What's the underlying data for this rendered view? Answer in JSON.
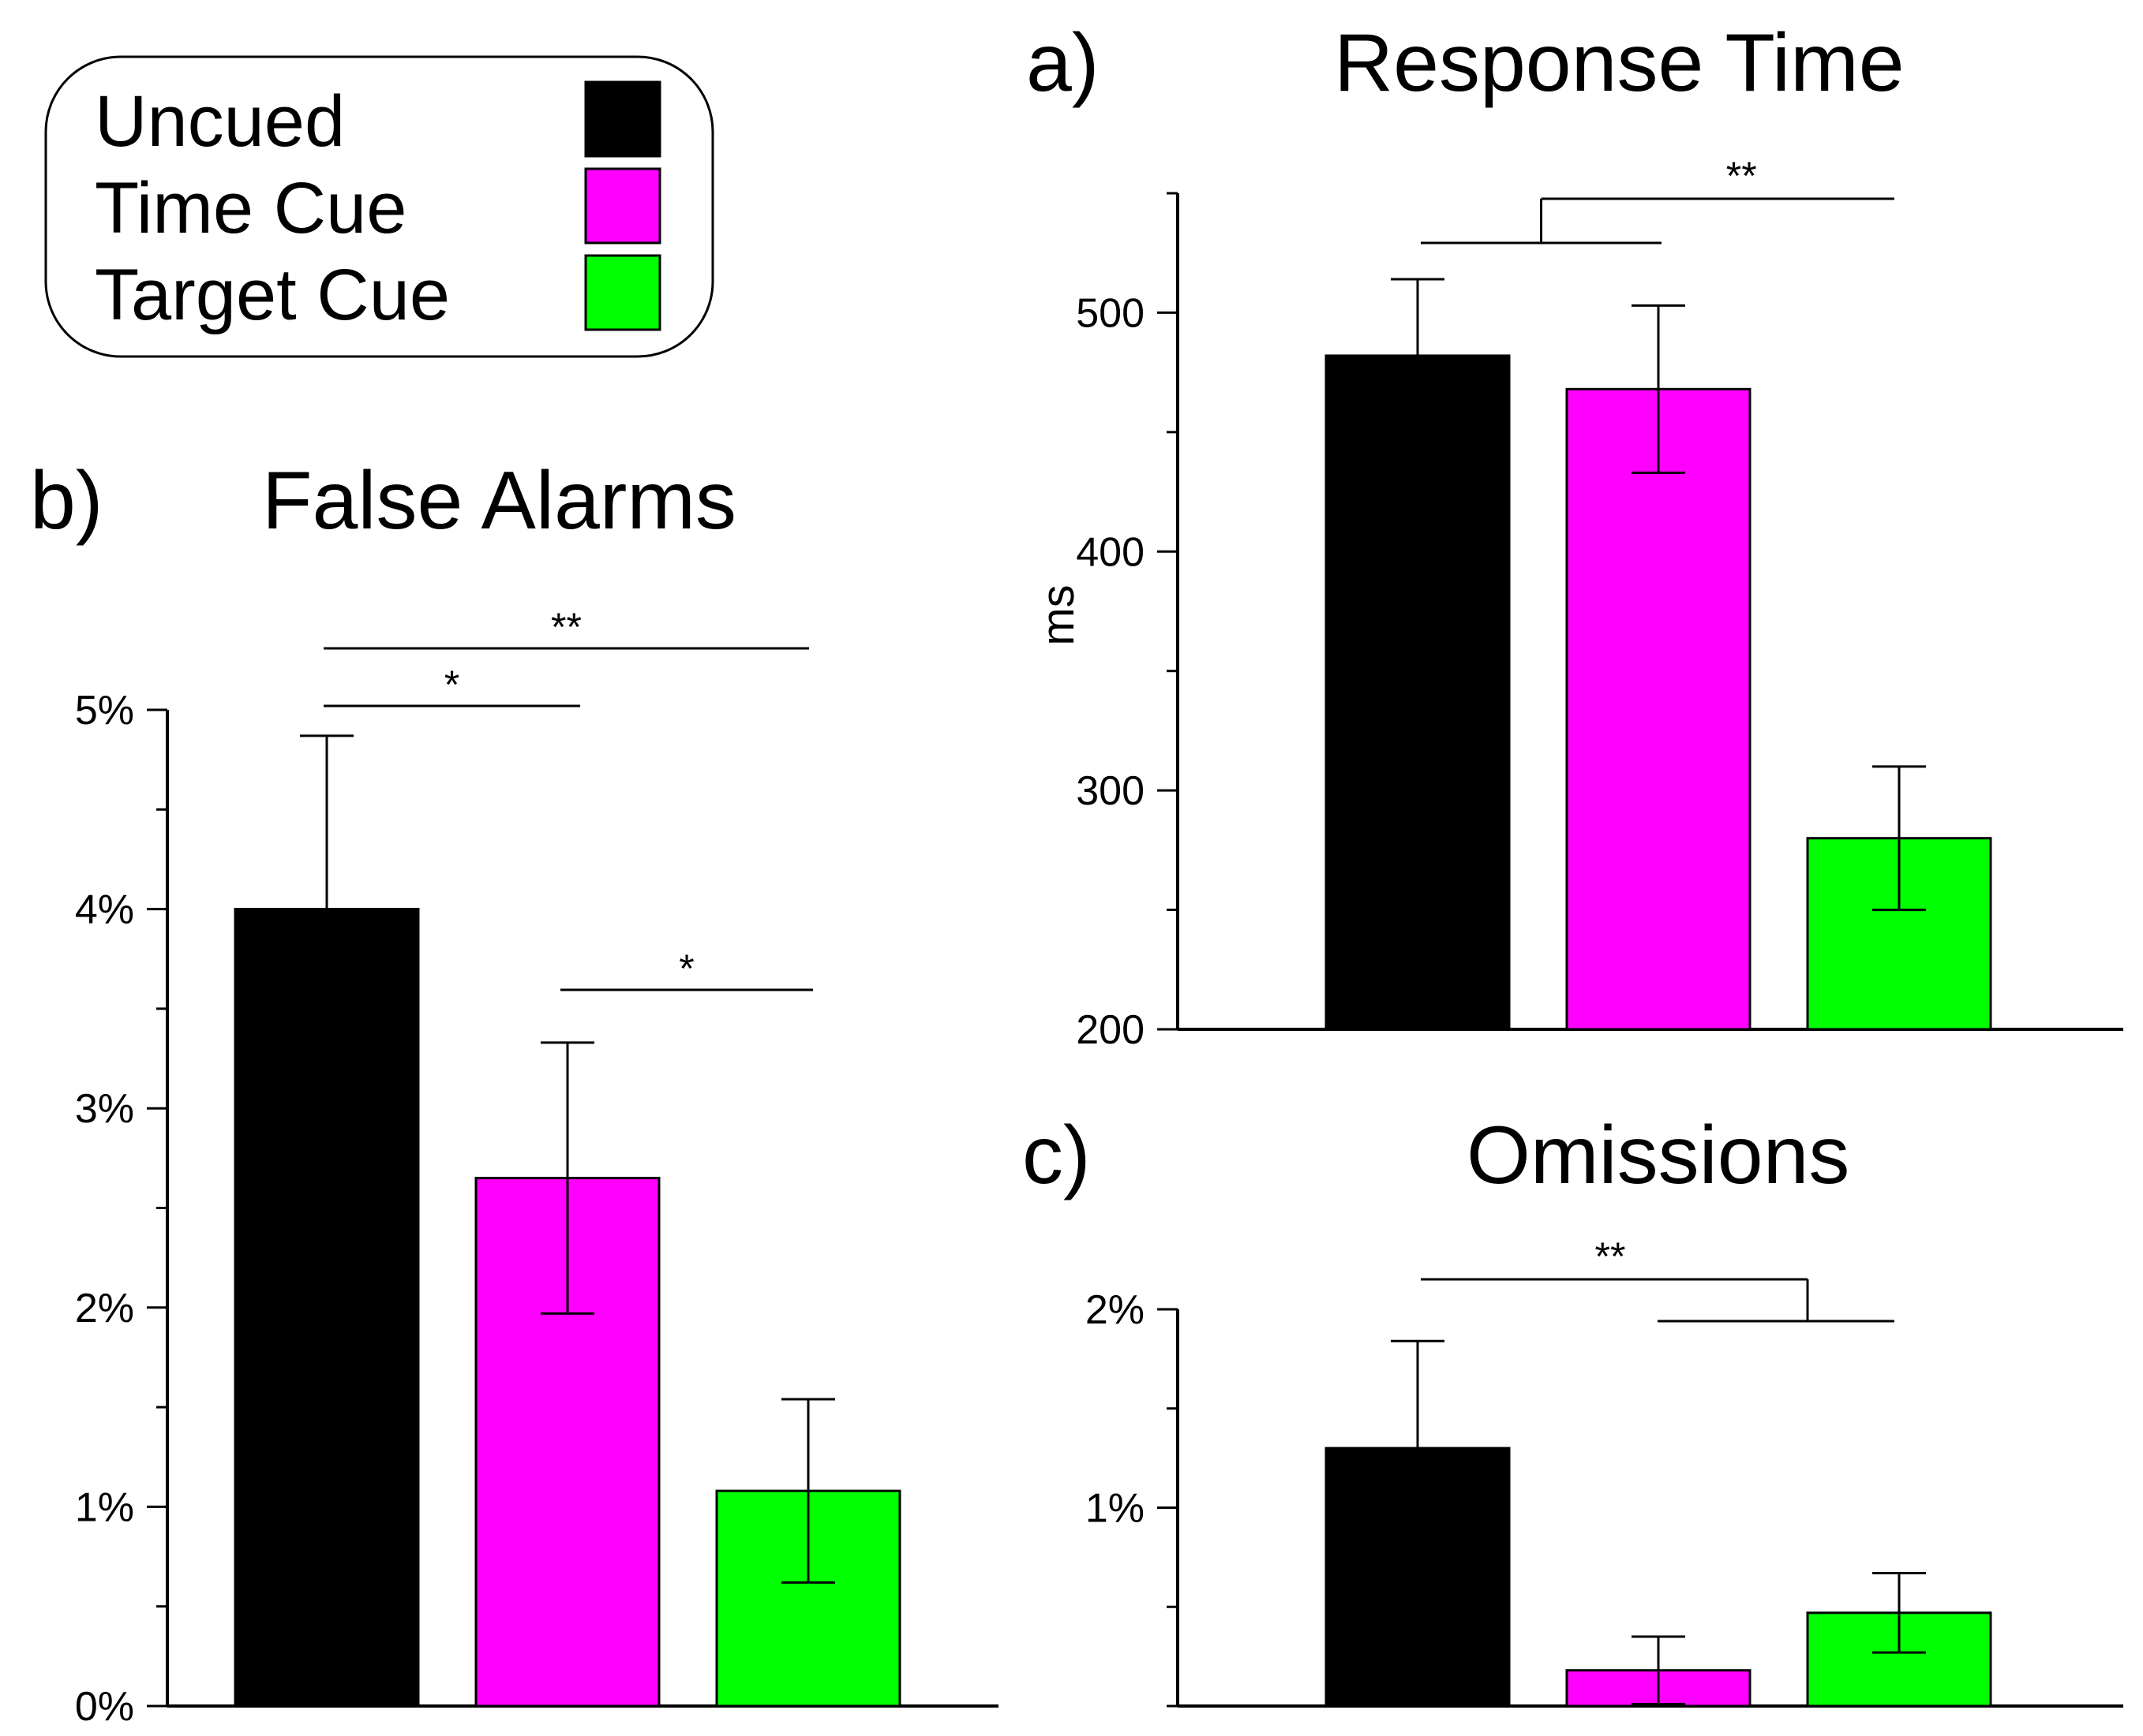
{
  "legend": {
    "items": [
      {
        "label": "Uncued",
        "color": "#000000"
      },
      {
        "label": "Time Cue",
        "color": "#ff00ff"
      },
      {
        "label": "Target Cue",
        "color": "#00ff00"
      }
    ]
  },
  "chart_data": [
    {
      "id": "a",
      "type": "bar",
      "panel_label": "a)",
      "title": "Response Time",
      "ylabel": "ms",
      "xlabel": "",
      "categories": [
        "Uncued",
        "Time Cue",
        "Target Cue"
      ],
      "values": [
        482,
        468,
        280
      ],
      "errors": [
        32,
        35,
        30
      ],
      "colors": [
        "#000000",
        "#ff00ff",
        "#00ff00"
      ],
      "ylim": [
        200,
        550
      ],
      "yticks": [
        200,
        300,
        400,
        500
      ],
      "ytick_labels": [
        "200",
        "300",
        "400",
        "500"
      ],
      "significance": [
        {
          "label": "**",
          "groups": [
            "Uncued + Time Cue",
            "Target Cue"
          ]
        }
      ]
    },
    {
      "id": "b",
      "type": "bar",
      "panel_label": "b)",
      "title": "False Alarms",
      "ylabel": "",
      "xlabel": "",
      "categories": [
        "Uncued",
        "Time Cue",
        "Target Cue"
      ],
      "values": [
        4.0,
        2.65,
        1.08
      ],
      "errors": [
        0.87,
        0.68,
        0.46
      ],
      "colors": [
        "#000000",
        "#ff00ff",
        "#00ff00"
      ],
      "ylim": [
        0,
        5
      ],
      "yticks": [
        0,
        1,
        2,
        3,
        4,
        5
      ],
      "ytick_labels": [
        "0%",
        "1%",
        "2%",
        "3%",
        "4%",
        "5%"
      ],
      "significance": [
        {
          "label": "**",
          "groups": [
            "Uncued",
            "Target Cue"
          ]
        },
        {
          "label": "*",
          "groups": [
            "Uncued",
            "Time Cue"
          ]
        },
        {
          "label": "*",
          "groups": [
            "Time Cue",
            "Target Cue"
          ]
        }
      ]
    },
    {
      "id": "c",
      "type": "bar",
      "panel_label": "c)",
      "title": "Omissions",
      "ylabel": "",
      "xlabel": "",
      "categories": [
        "Uncued",
        "Time Cue",
        "Target Cue"
      ],
      "values": [
        1.3,
        0.18,
        0.47
      ],
      "errors": [
        0.54,
        0.17,
        0.2
      ],
      "colors": [
        "#000000",
        "#ff00ff",
        "#00ff00"
      ],
      "ylim": [
        0,
        2
      ],
      "yticks": [
        1,
        2
      ],
      "ytick_labels": [
        "1%",
        "2%"
      ],
      "significance": [
        {
          "label": "**",
          "groups": [
            "Uncued",
            "Time Cue + Target Cue"
          ]
        }
      ]
    }
  ]
}
